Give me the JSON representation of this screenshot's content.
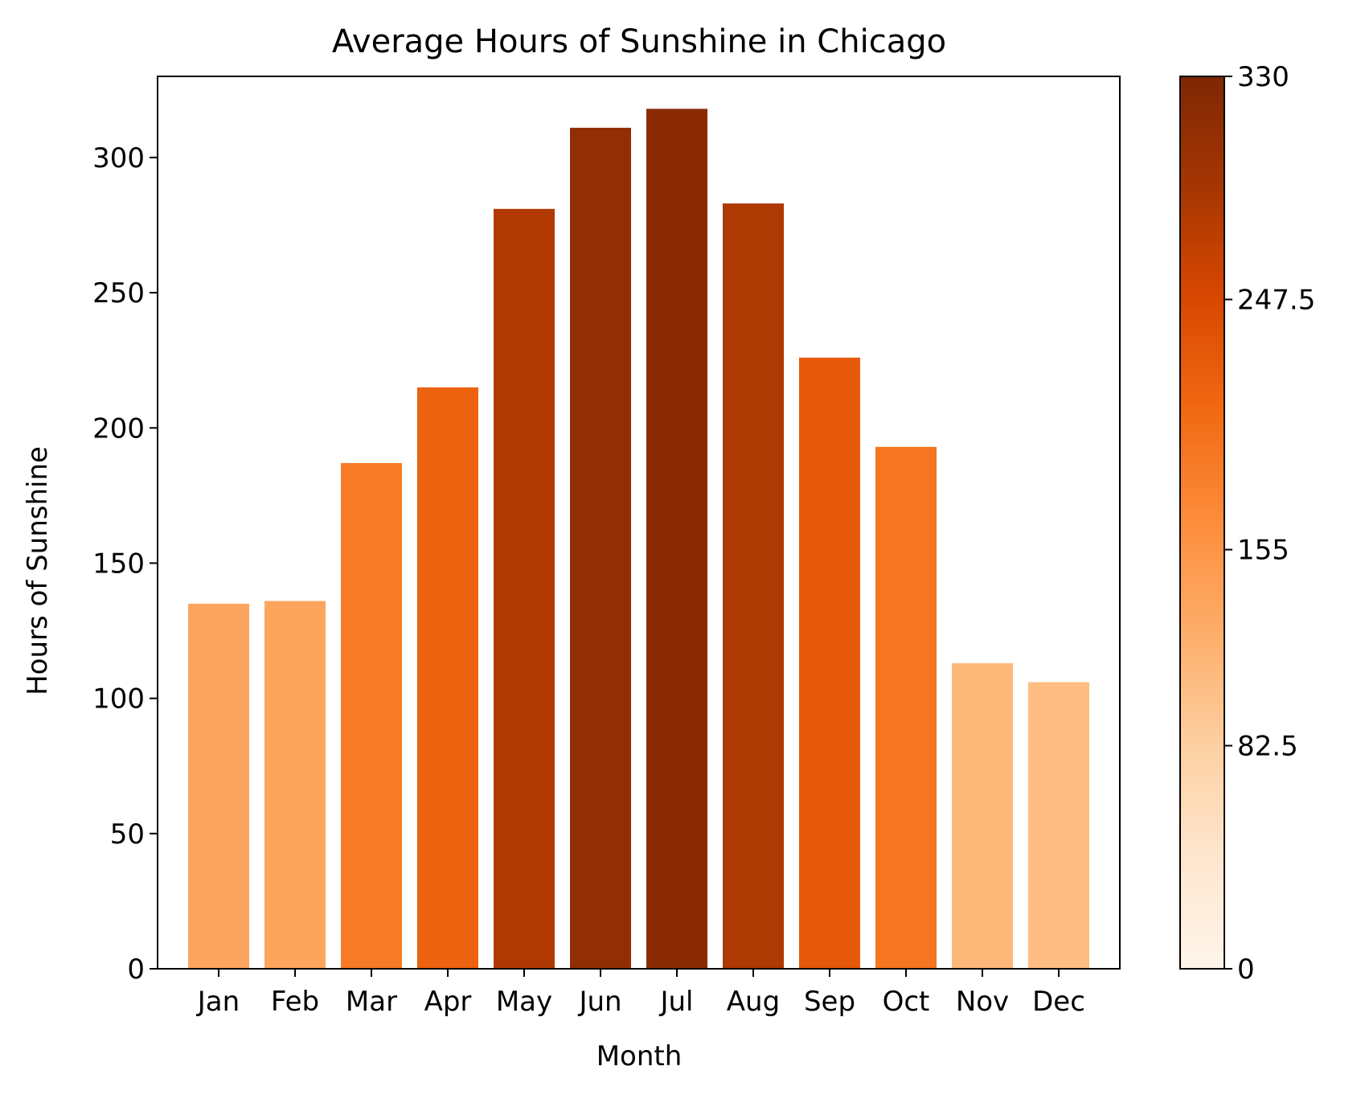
{
  "chart_data": {
    "type": "bar",
    "title": "Average Hours of Sunshine in Chicago",
    "xlabel": "Month",
    "ylabel": "Hours of Sunshine",
    "categories": [
      "Jan",
      "Feb",
      "Mar",
      "Apr",
      "May",
      "Jun",
      "Jul",
      "Aug",
      "Sep",
      "Oct",
      "Nov",
      "Dec"
    ],
    "values": [
      135,
      136,
      187,
      215,
      281,
      311,
      318,
      283,
      226,
      193,
      113,
      106
    ],
    "ylim": [
      0,
      330
    ],
    "yticks": [
      0,
      50,
      100,
      150,
      200,
      250,
      300
    ],
    "grid": false,
    "legend": "none",
    "colorbar": {
      "colormap": "Oranges",
      "range": [
        0,
        330
      ],
      "ticks": [
        0,
        82.5,
        155,
        247.5,
        330
      ],
      "tick_labels": [
        "0",
        "82.5",
        "155",
        "247.5",
        "330"
      ],
      "stops": [
        "#fff5eb",
        "#fee6ce",
        "#fdd0a2",
        "#fdae6b",
        "#fd8d3c",
        "#f16913",
        "#d94801",
        "#a63603",
        "#7f2704"
      ]
    }
  }
}
